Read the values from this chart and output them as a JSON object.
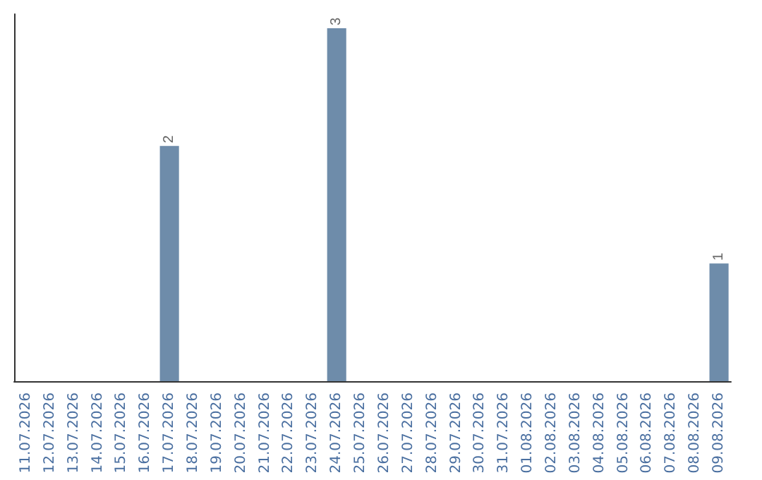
{
  "chart_data": {
    "type": "bar",
    "categories": [
      "11.07.2026",
      "12.07.2026",
      "13.07.2026",
      "14.07.2026",
      "15.07.2026",
      "16.07.2026",
      "17.07.2026",
      "18.07.2026",
      "19.07.2026",
      "20.07.2026",
      "21.07.2026",
      "22.07.2026",
      "23.07.2026",
      "24.07.2026",
      "25.07.2026",
      "26.07.2026",
      "27.07.2026",
      "28.07.2026",
      "29.07.2026",
      "30.07.2026",
      "31.07.2026",
      "01.08.2026",
      "02.08.2026",
      "03.08.2026",
      "04.08.2026",
      "05.08.2026",
      "06.08.2026",
      "07.08.2026",
      "08.08.2026",
      "09.08.2026"
    ],
    "values": [
      0,
      0,
      0,
      0,
      0,
      0,
      2,
      0,
      0,
      0,
      0,
      0,
      0,
      3,
      0,
      0,
      0,
      0,
      0,
      0,
      0,
      0,
      0,
      0,
      0,
      0,
      0,
      0,
      0,
      1
    ],
    "value_labels": [
      null,
      null,
      null,
      null,
      null,
      null,
      "2",
      null,
      null,
      null,
      null,
      null,
      null,
      "3",
      null,
      null,
      null,
      null,
      null,
      null,
      null,
      null,
      null,
      null,
      null,
      null,
      null,
      null,
      null,
      "1"
    ],
    "color": "#6e8caa"
  }
}
